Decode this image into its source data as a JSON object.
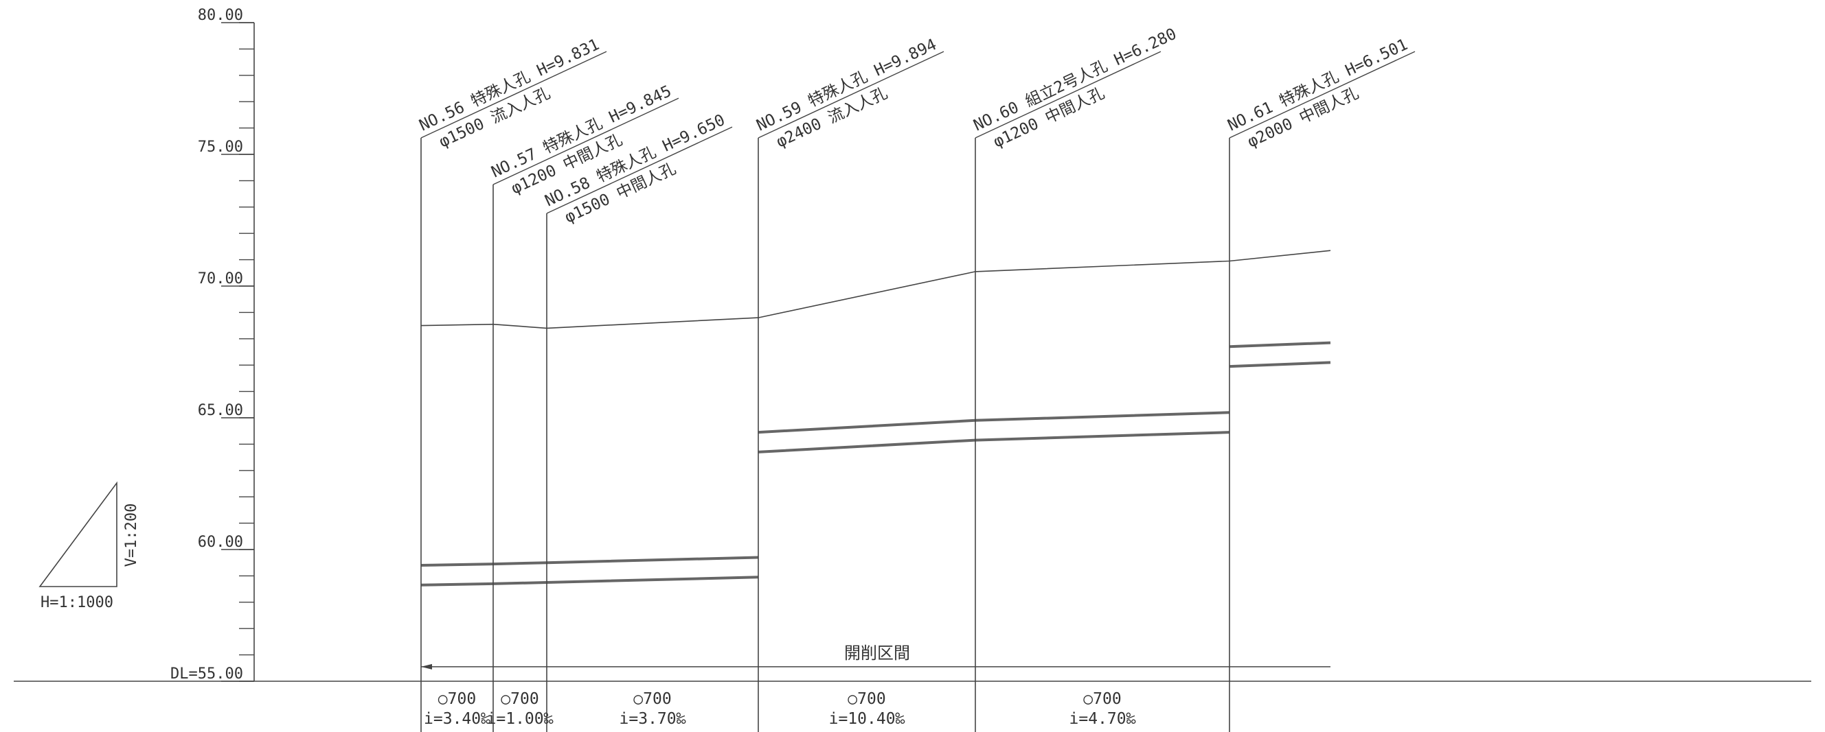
{
  "drawing": {
    "y_axis": {
      "min": 55.0,
      "max": 80.0,
      "labels": [
        {
          "value": 80.0,
          "text": "80.00"
        },
        {
          "value": 75.0,
          "text": "75.00"
        },
        {
          "value": 70.0,
          "text": "70.00"
        },
        {
          "value": 65.0,
          "text": "65.00"
        },
        {
          "value": 60.0,
          "text": "60.00"
        },
        {
          "value": 55.0,
          "text": "DL=55.00"
        }
      ],
      "minor_tick_step": 1.0
    },
    "scale": {
      "vertical": "V=1:200",
      "horizontal": "H=1:1000"
    },
    "manholes": [
      {
        "line1": "NO.56 特殊人孔 H=9.831",
        "line2": "φ1500 流入人孔"
      },
      {
        "line1": "NO.57 特殊人孔 H=9.845",
        "line2": "φ1200 中間人孔"
      },
      {
        "line1": "NO.58 特殊人孔 H=9.650",
        "line2": "φ1500 中間人孔"
      },
      {
        "line1": "NO.59 特殊人孔 H=9.894",
        "line2": "φ2400 流入人孔"
      },
      {
        "line1": "NO.60 組立2号人孔 H=6.280",
        "line2": "φ1200 中間人孔"
      },
      {
        "line1": "NO.61 特殊人孔 H=6.501",
        "line2": "φ2000 中間人孔"
      }
    ],
    "ground_elevations": [
      68.5,
      68.55,
      68.4,
      68.8,
      70.55,
      70.95,
      71.35
    ],
    "pipe_runs": [
      {
        "from": 0,
        "to": 3,
        "top": [
          59.4,
          59.45,
          59.5,
          59.7
        ],
        "bottom": [
          58.65,
          58.7,
          58.75,
          58.95
        ]
      },
      {
        "from": 3,
        "to": 5,
        "top": [
          64.45,
          64.9,
          65.2
        ],
        "bottom": [
          63.7,
          64.15,
          64.45
        ]
      },
      {
        "from": 5,
        "to": 6,
        "top": [
          67.7,
          67.85
        ],
        "bottom": [
          66.95,
          67.1
        ]
      }
    ],
    "section": {
      "label": "開削区間",
      "elevation": 55.55
    },
    "segments": [
      {
        "diameter": "○700",
        "slope": "i=3.40‰"
      },
      {
        "diameter": "○700",
        "slope": "i=1.00‰"
      },
      {
        "diameter": "○700",
        "slope": "i=3.70‰"
      },
      {
        "diameter": "○700",
        "slope": "i=10.40‰"
      },
      {
        "diameter": "○700",
        "slope": "i=4.70‰"
      }
    ],
    "colors": {
      "line": "#444444",
      "pipe": "#666666",
      "text": "#333333"
    }
  }
}
